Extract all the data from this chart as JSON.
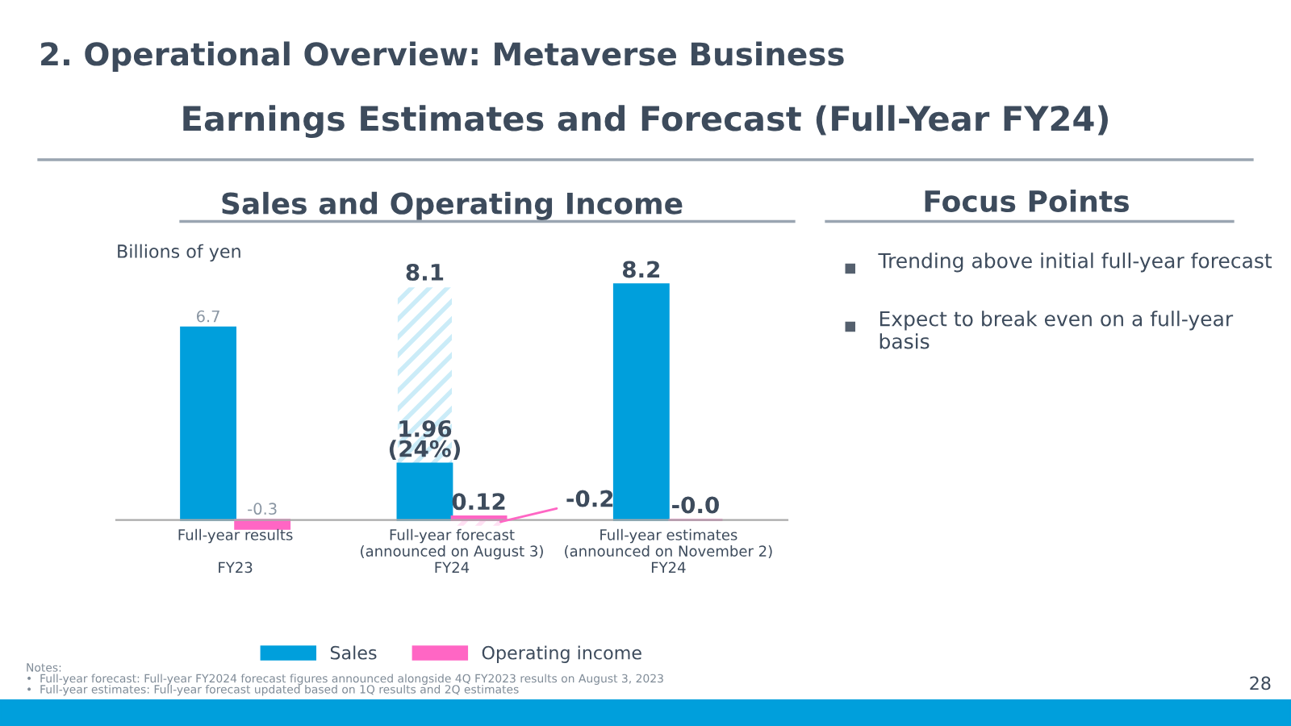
{
  "chart_data": [
    {
      "type": "bar",
      "title": "Sales and Operating Income",
      "ylabel": "Billions of yen",
      "categories": [
        "Full-year results\n\nFY23",
        "Full-year forecast\n(announced on August 3)\nFY24",
        "Full-year estimates\n(announced on November 2)\nFY24"
      ],
      "series": [
        {
          "name": "Sales",
          "color": "#009fdc",
          "values": [
            6.7,
            null,
            8.2
          ],
          "value_labels": [
            "6.7",
            null,
            "8.2"
          ]
        },
        {
          "color": "#009fdc",
          "values": [
            null,
            8.1,
            null
          ],
          "value_labels": [
            null,
            "8.1",
            null
          ]
        },
        {
          "color": "#009fdc",
          "values": [
            null,
            1.96,
            null
          ],
          "value_labels": [
            null,
            "1.96\n(24%)",
            null
          ]
        },
        {
          "name": "Operating income",
          "color": "#ff66c4",
          "values": [
            -0.3,
            null,
            -0.0
          ],
          "value_labels": [
            "-0.3",
            null,
            "-0.0"
          ]
        },
        {
          "color": "#ff66c4",
          "values": [
            null,
            -0.2,
            null
          ],
          "value_labels": [
            null,
            "-0.2",
            null
          ]
        },
        {
          "color": "#ff66c4",
          "values": [
            null,
            0.12,
            null
          ],
          "value_labels": [
            null,
            "0.12",
            null
          ]
        }
      ],
      "tick_labels": "x",
      "legend": "bottom",
      "annotations": [
        "2. Operational Overview: Metaverse Business",
        "Earnings Estimates and Forecast (Full-Year FY24)",
        "Notes:",
        "•  Full-year forecast: Full-year FY2024 forecast figures announced alongside 4Q FY2023 results on August 3, 2023",
        "•  Full-year estimates: Full-year forecast updated based on 1Q results and 2Q estimates",
        "28"
      ]
    },
    {
      "type": "other",
      "title": "Focus Points",
      "annotations": [
        "Trending above initial full-year forecast",
        "Expect to break even on a full-year basis"
      ]
    }
  ]
}
